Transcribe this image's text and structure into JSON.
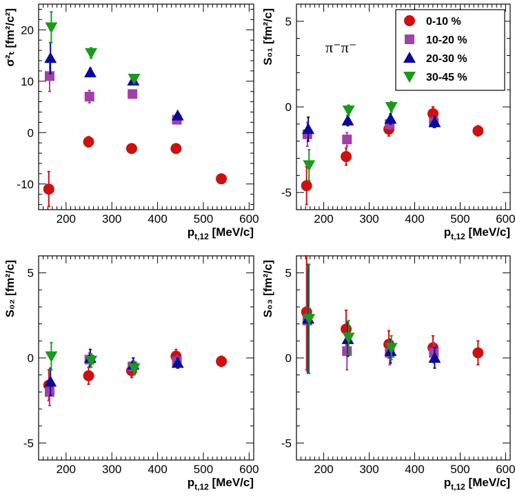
{
  "colors": {
    "0-10 %": "#cc1111",
    "10-20 %": "#a040a8",
    "20-30 %": "#0a0a99",
    "30-45 %": "#1a9a1a"
  },
  "markers": {
    "0-10 %": "circle",
    "10-20 %": "square",
    "20-30 %": "triangle-up",
    "30-45 %": "triangle-down"
  },
  "chart_data": [
    {
      "id": "sigma",
      "type": "scatter",
      "ylabel": "σ²ₜ [fm²/c²]",
      "xlabel": "p_{t,12} [MeV/c]",
      "xlim": [
        140,
        610
      ],
      "ylim": [
        -15,
        25
      ],
      "xticks": [
        "200",
        "300",
        "400",
        "500",
        "600"
      ],
      "xtick_values": [
        200,
        300,
        400,
        500,
        600
      ],
      "yticks": [
        "-10",
        "0",
        "10",
        "20"
      ],
      "ytick_values": [
        -10,
        0,
        10,
        20
      ],
      "annotation": "",
      "legend": {
        "entries": [
          "0-10 %",
          "10-20 %",
          "20-30 %",
          "30-45 %"
        ],
        "position": "none"
      },
      "series": [
        {
          "name": "0-10 %",
          "x": [
            165,
            252,
            346,
            443,
            542
          ],
          "y": [
            -11,
            -1.8,
            -3.1,
            -3.1,
            -9
          ],
          "err": [
            3.4,
            1.0,
            0.5,
            0.5,
            0.4
          ]
        },
        {
          "name": "10-20 %",
          "x": [
            165,
            252,
            346,
            443
          ],
          "y": [
            11,
            7,
            7.5,
            2.5
          ],
          "err": [
            3.0,
            1.2,
            0.6,
            0.5
          ]
        },
        {
          "name": "20-30 %",
          "x": [
            165,
            252,
            346,
            443
          ],
          "y": [
            14.5,
            11.7,
            10.1,
            3.3
          ],
          "err": [
            3.0,
            0.8,
            0.6,
            0.5
          ]
        },
        {
          "name": "30-45 %",
          "x": [
            165,
            252,
            346
          ],
          "y": [
            20.5,
            15.5,
            10.5
          ],
          "err": [
            3.0,
            1.0,
            0.7
          ]
        }
      ]
    },
    {
      "id": "s01",
      "type": "scatter",
      "ylabel": "S₀₁ [fm²/c]",
      "xlabel": "p_{t,12} [MeV/c]",
      "xlim": [
        140,
        610
      ],
      "ylim": [
        -6,
        6
      ],
      "xticks": [
        "200",
        "300",
        "400",
        "500",
        "600"
      ],
      "xtick_values": [
        200,
        300,
        400,
        500,
        600
      ],
      "yticks": [
        "-5",
        "0",
        "5"
      ],
      "ytick_values": [
        -5,
        0,
        5
      ],
      "annotation": "π⁻π⁻",
      "legend": {
        "entries": [
          "0-10 %",
          "10-20 %",
          "20-30 %",
          "30-45 %"
        ],
        "position": "top-right"
      },
      "series": [
        {
          "name": "0-10 %",
          "x": [
            165,
            252,
            346,
            443,
            542
          ],
          "y": [
            -4.6,
            -2.9,
            -1.3,
            -0.4,
            -1.4
          ],
          "err": [
            1.1,
            0.5,
            0.4,
            0.4,
            0.3
          ]
        },
        {
          "name": "10-20 %",
          "x": [
            165,
            252,
            346,
            443
          ],
          "y": [
            -1.6,
            -1.9,
            -1.0,
            -0.9
          ],
          "err": [
            0.7,
            0.4,
            0.3,
            0.3
          ]
        },
        {
          "name": "20-30 %",
          "x": [
            165,
            252,
            346,
            443
          ],
          "y": [
            -1.3,
            -0.8,
            -0.7,
            -0.9
          ],
          "err": [
            0.7,
            0.3,
            0.3,
            0.3
          ]
        },
        {
          "name": "30-45 %",
          "x": [
            165,
            252,
            346
          ],
          "y": [
            -3.4,
            -0.2,
            0.0
          ],
          "err": [
            0.9,
            0.3,
            0.3
          ]
        }
      ]
    },
    {
      "id": "s02",
      "type": "scatter",
      "ylabel": "S₀₂ [fm²/c]",
      "xlabel": "p_{t,12} [MeV/c]",
      "xlim": [
        140,
        610
      ],
      "ylim": [
        -6,
        6
      ],
      "xticks": [
        "200",
        "300",
        "400",
        "500",
        "600"
      ],
      "xtick_values": [
        200,
        300,
        400,
        500,
        600
      ],
      "yticks": [
        "-5",
        "0",
        "5"
      ],
      "ytick_values": [
        -5,
        0,
        5
      ],
      "annotation": "",
      "legend": {
        "entries": [
          "0-10 %",
          "10-20 %",
          "20-30 %",
          "30-45 %"
        ],
        "position": "none"
      },
      "series": [
        {
          "name": "0-10 %",
          "x": [
            165,
            252,
            346,
            443,
            542
          ],
          "y": [
            -1.6,
            -1.05,
            -0.75,
            0.1,
            -0.2
          ],
          "err": [
            0.9,
            0.5,
            0.4,
            0.4,
            0.3
          ]
        },
        {
          "name": "10-20 %",
          "x": [
            165,
            252,
            346,
            443
          ],
          "y": [
            -2.0,
            -0.1,
            -0.5,
            -0.2
          ],
          "err": [
            0.8,
            0.4,
            0.3,
            0.3
          ]
        },
        {
          "name": "20-30 %",
          "x": [
            165,
            252,
            346,
            443
          ],
          "y": [
            -1.4,
            0.0,
            -0.4,
            -0.3
          ],
          "err": [
            0.8,
            0.5,
            0.4,
            0.3
          ]
        },
        {
          "name": "30-45 %",
          "x": [
            165,
            252,
            346
          ],
          "y": [
            0.1,
            -0.15,
            -0.6
          ],
          "err": [
            0.8,
            0.4,
            0.4
          ]
        }
      ]
    },
    {
      "id": "s03",
      "type": "scatter",
      "ylabel": "S₀₃ [fm²/c]",
      "xlabel": "p_{t,12} [MeV/c]",
      "xlim": [
        140,
        610
      ],
      "ylim": [
        -6,
        6
      ],
      "xticks": [
        "200",
        "300",
        "400",
        "500",
        "600"
      ],
      "xtick_values": [
        200,
        300,
        400,
        500,
        600
      ],
      "yticks": [
        "-5",
        "0",
        "5"
      ],
      "ytick_values": [
        -5,
        0,
        5
      ],
      "annotation": "",
      "legend": {
        "entries": [
          "0-10 %",
          "10-20 %",
          "20-30 %",
          "30-45 %"
        ],
        "position": "none"
      },
      "series": [
        {
          "name": "0-10 %",
          "x": [
            165,
            252,
            346,
            443,
            542
          ],
          "y": [
            2.7,
            1.7,
            0.8,
            0.6,
            0.3
          ],
          "err": [
            3.4,
            1.1,
            0.8,
            0.7,
            0.7
          ]
        },
        {
          "name": "10-20 %",
          "x": [
            165,
            252,
            346,
            443
          ],
          "y": [
            2.2,
            0.4,
            0.3,
            0.3
          ],
          "err": [
            3.0,
            1.1,
            0.7,
            0.6
          ]
        },
        {
          "name": "20-30 %",
          "x": [
            165,
            252,
            346,
            443
          ],
          "y": [
            2.3,
            1.1,
            0.4,
            0.0
          ],
          "err": [
            3.2,
            1.0,
            0.7,
            0.6
          ]
        },
        {
          "name": "30-45 %",
          "x": [
            165,
            252,
            346
          ],
          "y": [
            2.3,
            1.2,
            0.6
          ],
          "err": [
            3.2,
            1.0,
            0.7
          ]
        }
      ]
    }
  ]
}
